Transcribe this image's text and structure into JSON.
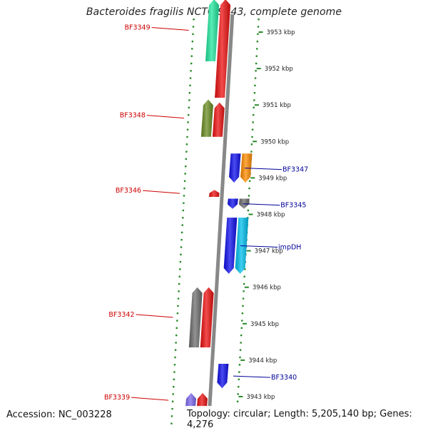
{
  "title": "Bacteroides fragilis NCTC 9343, complete genome",
  "accession": "Accession: NC_003228",
  "topology": "Topology: circular; Length: 5,205,140 bp; Genes: 4,276",
  "colors": {
    "scale_dots": "#2a8a2a",
    "backbone": "#888888",
    "label_forward": "#cc0000",
    "label_reverse": "#000099"
  },
  "scale_ticks": [
    {
      "kbp": 3953,
      "label": "3953 kbp"
    },
    {
      "kbp": 3952,
      "label": "3952 kbp"
    },
    {
      "kbp": 3951,
      "label": "3951 kbp"
    },
    {
      "kbp": 3950,
      "label": "3950 kbp"
    },
    {
      "kbp": 3949,
      "label": "3949 kbp"
    },
    {
      "kbp": 3948,
      "label": "3948 kbp"
    },
    {
      "kbp": 3947,
      "label": "3947 kbp"
    },
    {
      "kbp": 3946,
      "label": "3946 kbp"
    },
    {
      "kbp": 3945,
      "label": "3945 kbp"
    },
    {
      "kbp": 3944,
      "label": "3944 kbp"
    },
    {
      "kbp": 3943,
      "label": "3943 kbp"
    }
  ],
  "genes": [
    {
      "name": "BF3349",
      "strand": "forward",
      "start_kbp": 3952.2,
      "end_kbp": 3953.9,
      "lane": "outer",
      "color": "#22e8a0"
    },
    {
      "name": "",
      "strand": "forward",
      "start_kbp": 3951.2,
      "end_kbp": 3953.9,
      "lane": "inner",
      "color": "#ee1111"
    },
    {
      "name": "BF3348",
      "strand": "forward",
      "start_kbp": 3950.13,
      "end_kbp": 3951.15,
      "lane": "outer",
      "color": "#6b8e23"
    },
    {
      "name": "",
      "strand": "forward",
      "start_kbp": 3950.13,
      "end_kbp": 3951.07,
      "lane": "inner",
      "color": "#ee1111"
    },
    {
      "name": "BF3346",
      "strand": "forward",
      "start_kbp": 3948.48,
      "end_kbp": 3948.67,
      "lane": "inner",
      "color": "#ee1111"
    },
    {
      "name": "BF3347",
      "strand": "reverse",
      "start_kbp": 3948.87,
      "end_kbp": 3949.67,
      "lane": "inner",
      "color": "#1010ee"
    },
    {
      "name": "",
      "strand": "reverse",
      "start_kbp": 3948.87,
      "end_kbp": 3949.67,
      "lane": "outer",
      "color": "#ff8c00"
    },
    {
      "name": "BF3345",
      "strand": "reverse",
      "start_kbp": 3948.15,
      "end_kbp": 3948.43,
      "lane": "inner",
      "color": "#1010ee"
    },
    {
      "name": "",
      "strand": "reverse",
      "start_kbp": 3948.15,
      "end_kbp": 3948.43,
      "lane": "outer",
      "color": "#6e6e6e"
    },
    {
      "name": "impDH",
      "strand": "reverse",
      "start_kbp": 3946.37,
      "end_kbp": 3947.91,
      "lane": "inner",
      "color": "#1010ee"
    },
    {
      "name": "",
      "strand": "reverse",
      "start_kbp": 3946.37,
      "end_kbp": 3947.91,
      "lane": "outer",
      "color": "#00c0ef"
    },
    {
      "name": "BF3342",
      "strand": "forward",
      "start_kbp": 3944.35,
      "end_kbp": 3946.0,
      "lane": "outer",
      "color": "#6e6e6e"
    },
    {
      "name": "",
      "strand": "forward",
      "start_kbp": 3944.35,
      "end_kbp": 3946.0,
      "lane": "inner",
      "color": "#ee1111"
    },
    {
      "name": "BF3340",
      "strand": "reverse",
      "start_kbp": 3943.23,
      "end_kbp": 3943.9,
      "lane": "inner",
      "color": "#1010ee"
    },
    {
      "name": "BF3339",
      "strand": "forward",
      "start_kbp": 3942.7,
      "end_kbp": 3943.1,
      "lane": "outer",
      "color": "#7b68ee"
    },
    {
      "name": "",
      "strand": "forward",
      "start_kbp": 3942.7,
      "end_kbp": 3943.1,
      "lane": "inner",
      "color": "#ee1111"
    }
  ]
}
